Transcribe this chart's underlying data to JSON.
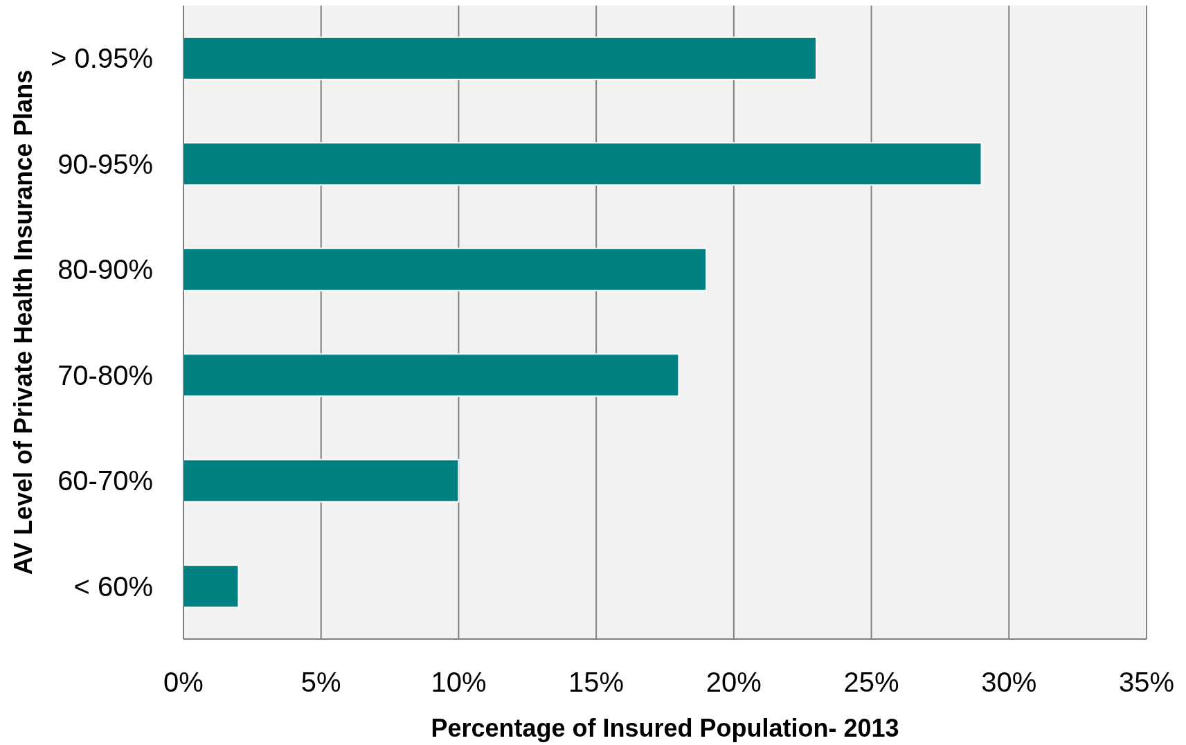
{
  "chart_data": {
    "type": "bar",
    "orientation": "horizontal",
    "xlabel": "Percentage of Insured Population- 2013",
    "ylabel": "AV Level of Private Health Insurance Plans",
    "categories": [
      "> 0.95%",
      "90-95%",
      "80-90%",
      "70-80%",
      "60-70%",
      "< 60%"
    ],
    "values": [
      23,
      29,
      19,
      18,
      10,
      2
    ],
    "color": "#008080",
    "xlim": [
      0,
      35
    ],
    "xticks": [
      {
        "value": 0,
        "label": "0%"
      },
      {
        "value": 5,
        "label": "5%"
      },
      {
        "value": 10,
        "label": "10%"
      },
      {
        "value": 15,
        "label": "15%"
      },
      {
        "value": 20,
        "label": "20%"
      },
      {
        "value": 25,
        "label": "25%"
      },
      {
        "value": 30,
        "label": "30%"
      },
      {
        "value": 35,
        "label": "35%"
      }
    ],
    "grid": "x"
  }
}
